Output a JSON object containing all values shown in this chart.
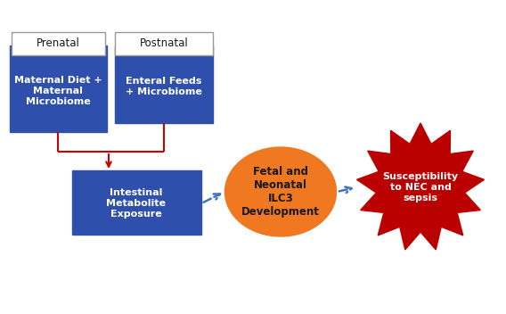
{
  "bg_color": "#ffffff",
  "box_blue": "#2E4FAB",
  "arrow_red": "#CC0000",
  "arrow_blue_dashed": "#4472C4",
  "orange_ellipse": "#F07820",
  "red_starburst": "#BB0000",
  "white_text": "#ffffff",
  "black_text": "#1a1a1a",
  "gray_border": "#999999",
  "prenatal_label": "Prenatal",
  "postnatal_label": "Postnatal",
  "box1_text": "Maternal Diet +\nMaternal\nMicrobiome",
  "box2_text": "Enteral Feeds\n+ Microbiome",
  "box3_text": "Intestinal\nMetabolite\nExposure",
  "ellipse_text": "Fetal and\nNeonatal\nILC3\nDevelopment",
  "starburst_text": "Susceptibility\nto NEC and\nsepsis",
  "fig_w": 5.68,
  "fig_h": 3.52,
  "dpi": 100
}
